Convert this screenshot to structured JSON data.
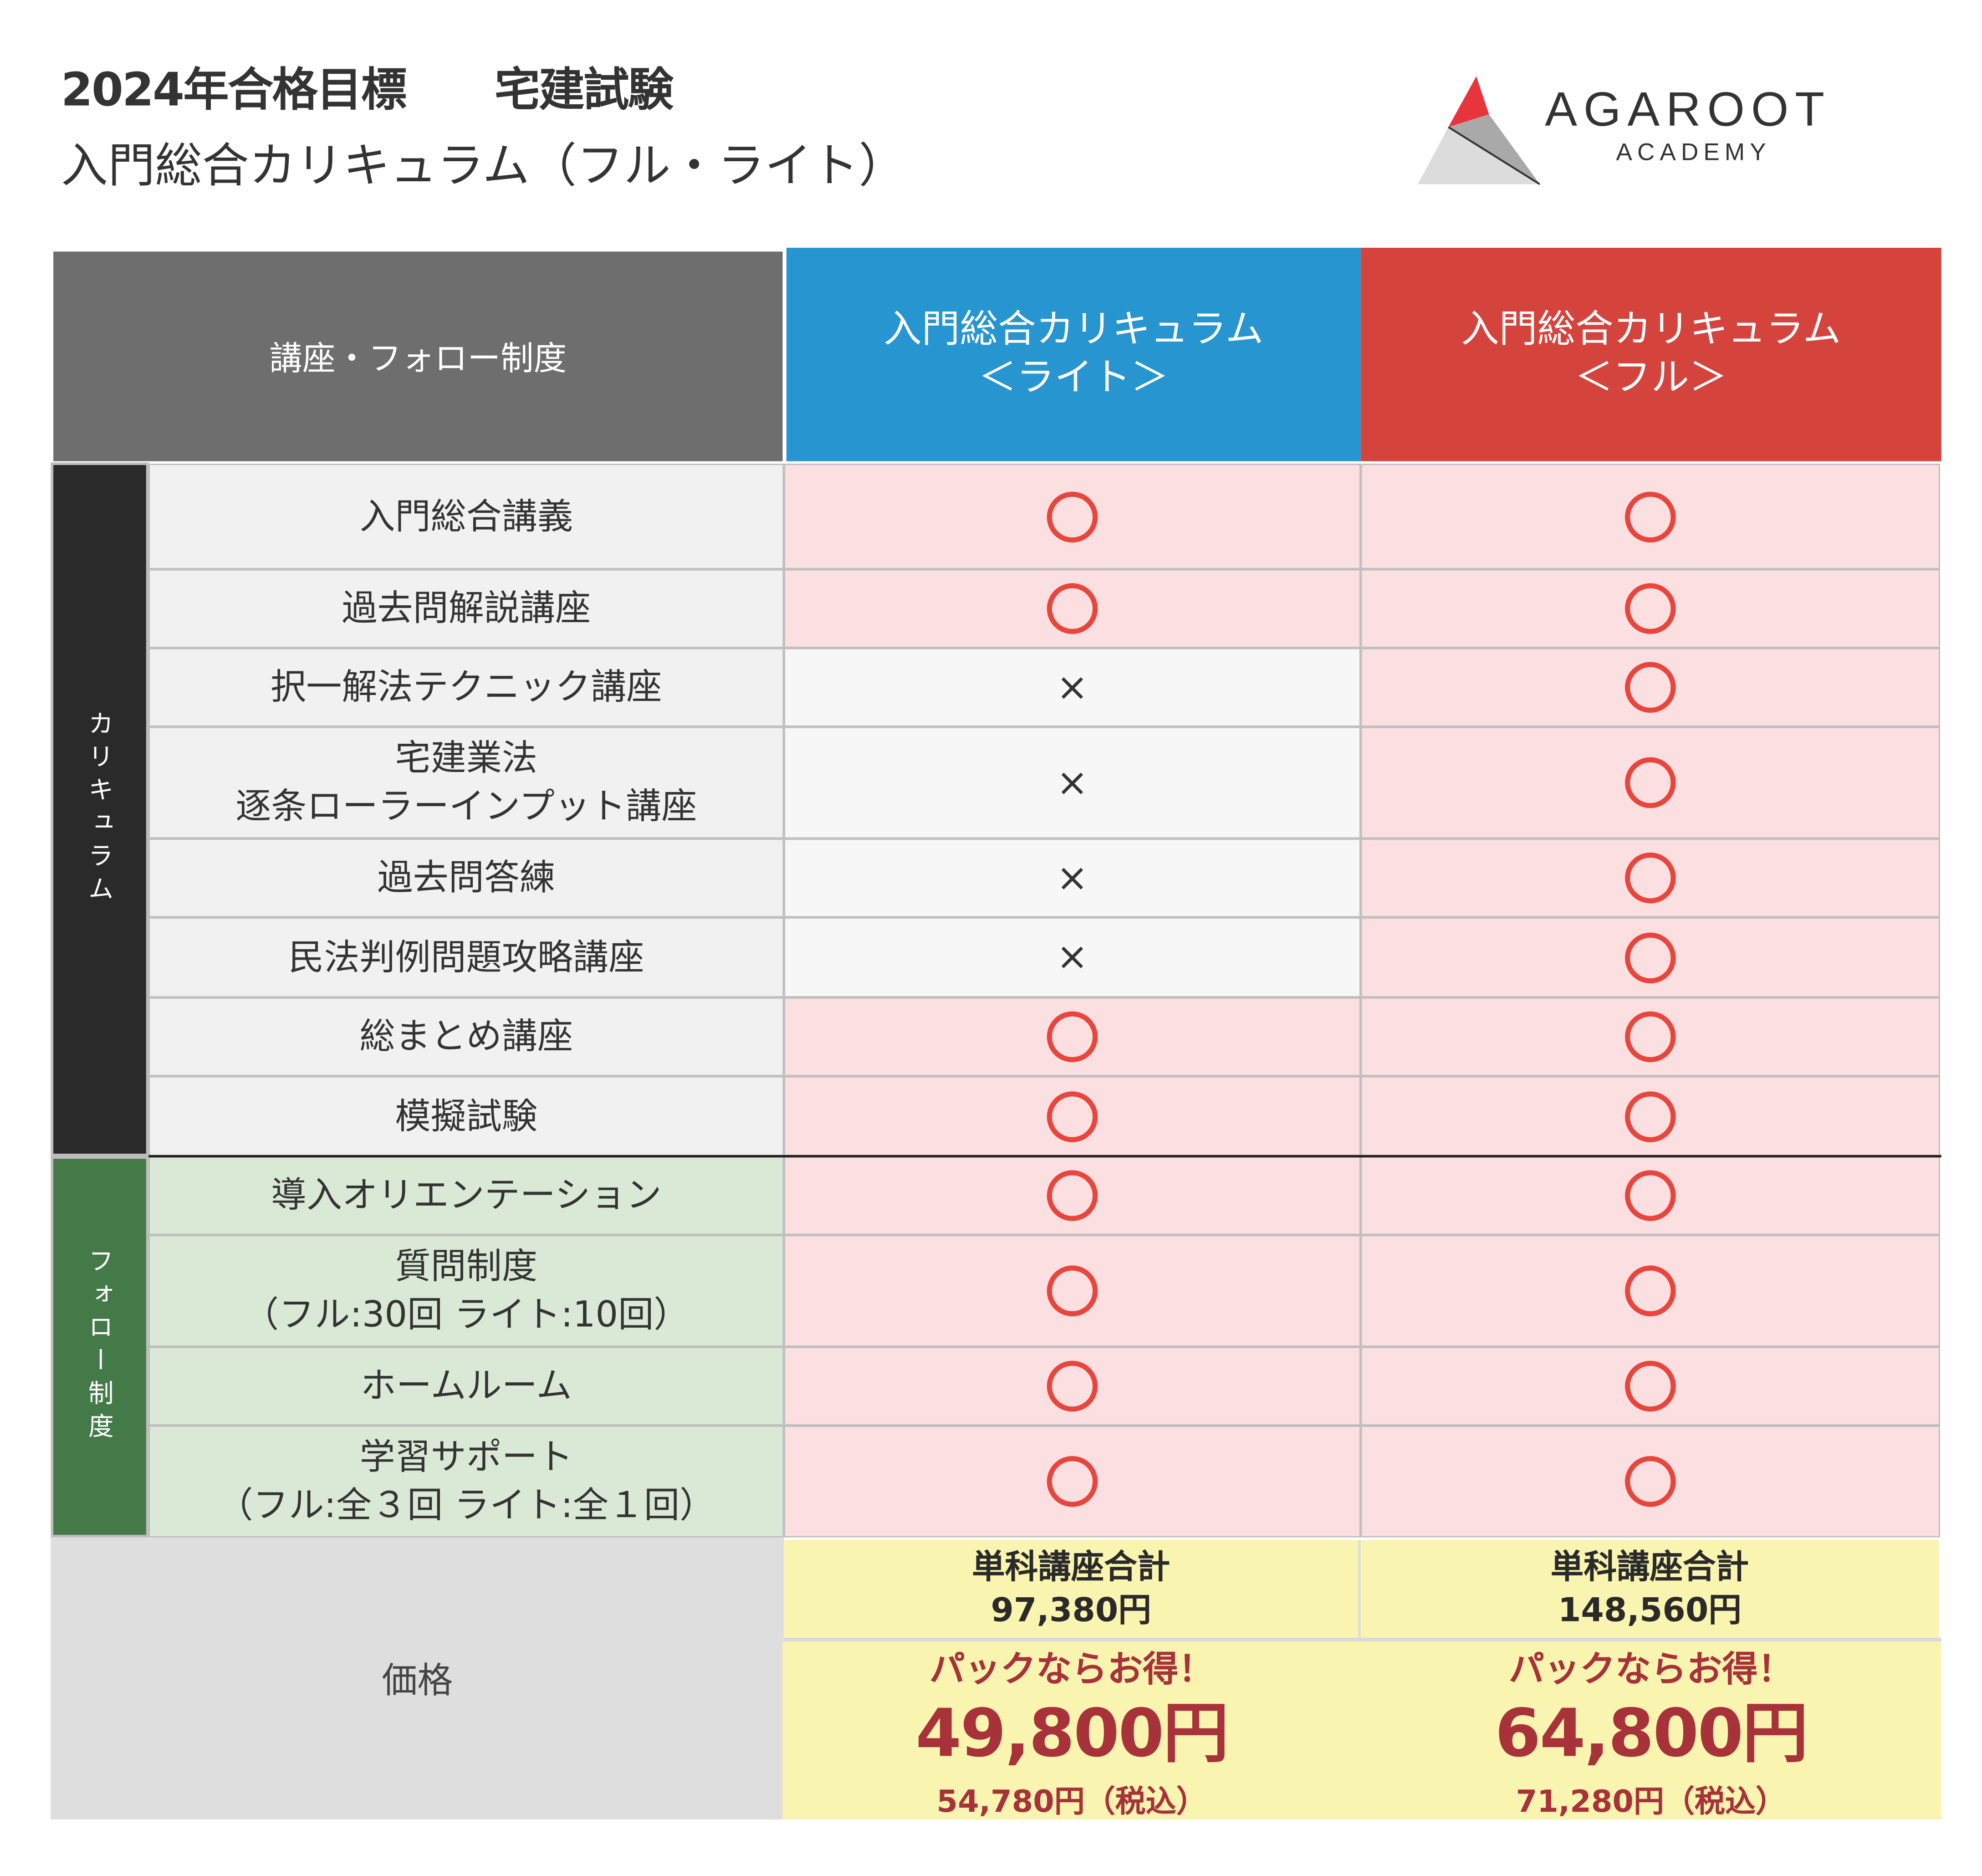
{
  "header": {
    "title_line1": "2024年合格目標　　宅建試験",
    "title_line2": "入門総合カリキュラム（フル・ライト）",
    "logo": {
      "name": "AGAROOT",
      "sub": "ACADEMY"
    }
  },
  "table": {
    "corner_label": "講座・フォロー制度",
    "columns": [
      {
        "line1": "入門総合カリキュラム",
        "line2": "＜ライト＞",
        "color": "#2795cf"
      },
      {
        "line1": "入門総合カリキュラム",
        "line2": "＜フル＞",
        "color": "#d5433d"
      }
    ],
    "groups": [
      {
        "label": "カリキュラム",
        "color": "#2a2a2a"
      },
      {
        "label": "フォロー制度",
        "color": "#447a48"
      }
    ],
    "rows": [
      {
        "label": "入門総合講義",
        "light": "circle",
        "full": "circle"
      },
      {
        "label": "過去問解説講座",
        "light": "circle",
        "full": "circle"
      },
      {
        "label": "択一解法テクニック講座",
        "light": "×",
        "full": "circle"
      },
      {
        "label": "宅建業法\n逐条ローラーインプット講座",
        "light": "×",
        "full": "circle"
      },
      {
        "label": "過去問答練",
        "light": "×",
        "full": "circle"
      },
      {
        "label": "民法判例問題攻略講座",
        "light": "×",
        "full": "circle"
      },
      {
        "label": "総まとめ講座",
        "light": "circle",
        "full": "circle"
      },
      {
        "label": "模擬試験",
        "light": "circle",
        "full": "circle"
      },
      {
        "label": "導入オリエンテーション",
        "light": "circle",
        "full": "circle"
      },
      {
        "label": "質問制度\n（フル:30回  ライト:10回）",
        "light": "circle",
        "full": "circle"
      },
      {
        "label": "ホームルーム",
        "light": "circle",
        "full": "circle"
      },
      {
        "label": "学習サポート\n（フル:全３回  ライト:全１回）",
        "light": "circle",
        "full": "circle"
      }
    ],
    "price": {
      "label": "価格",
      "light": {
        "sum_label": "単科講座合計",
        "sum": "97,380円",
        "pack_label": "パックならお得！",
        "price": "49,800円",
        "tax": "54,780円（税込）"
      },
      "full": {
        "sum_label": "単科講座合計",
        "sum": "148,560円",
        "pack_label": "パックならお得！",
        "price": "64,800円",
        "tax": "71,280円（税込）"
      }
    }
  },
  "colors": {
    "circle": "#e8453c",
    "pink_cell": "#fbdfe1",
    "price_text": "#a8323a",
    "price_bg": "#f9f5b0"
  }
}
